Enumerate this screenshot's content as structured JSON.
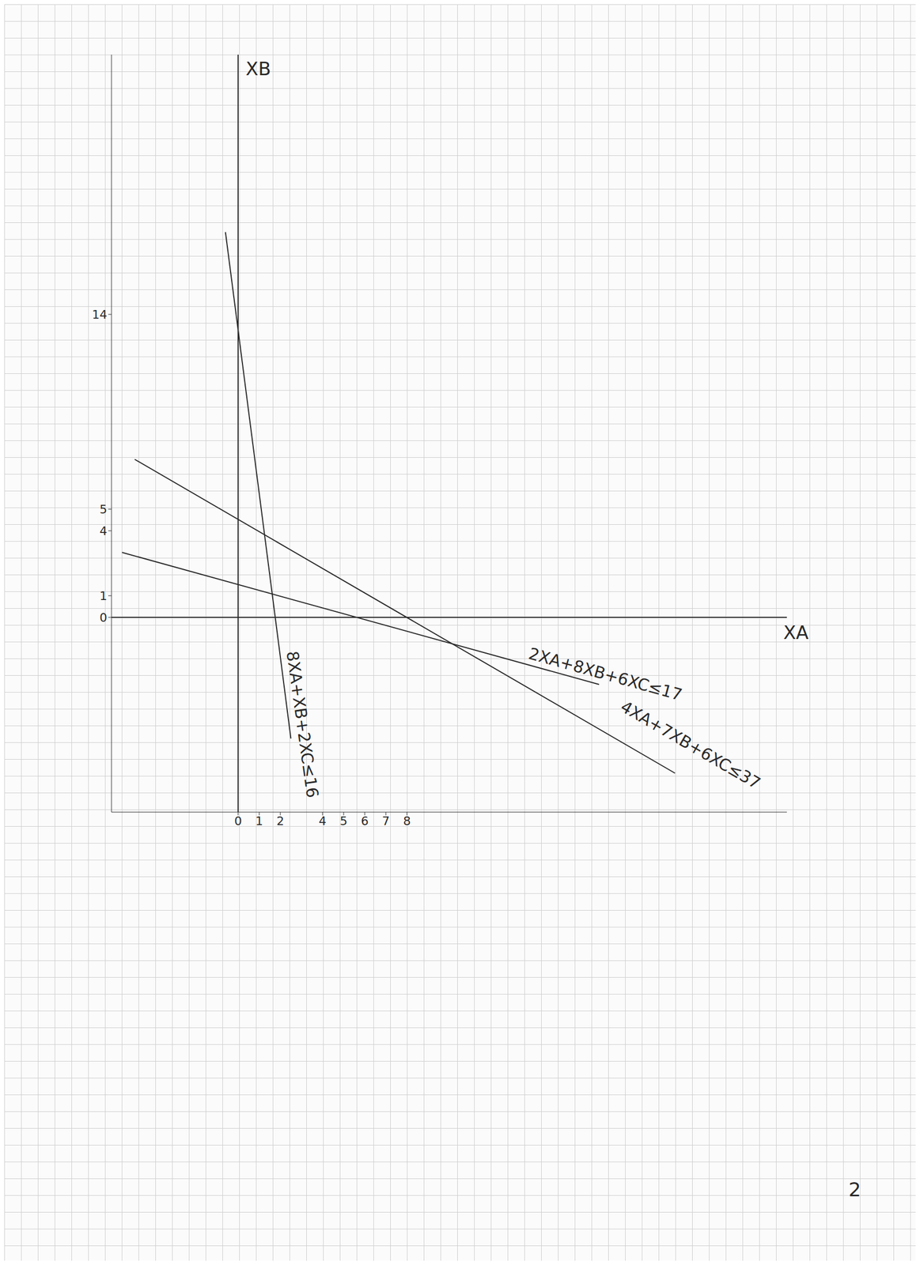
{
  "chart_data": {
    "type": "line",
    "x_label": "XA",
    "y_label": "XB",
    "xlim": [
      -6,
      26
    ],
    "ylim": [
      -9,
      26
    ],
    "xticks": [
      0,
      1,
      2,
      4,
      5,
      6,
      7,
      8
    ],
    "yticks": [
      0,
      1,
      4,
      5,
      14
    ],
    "grid": true,
    "series": [
      {
        "name": "8XA+XB+2XC≤16",
        "color": "#2a2a2a",
        "x": [
          -0.6,
          2.5
        ],
        "values": [
          17.8,
          -5.6
        ]
      },
      {
        "name": "2XA+8XB+6XC≤17",
        "color": "#2a2a2a",
        "x": [
          -5.5,
          17.1
        ],
        "values": [
          3.0,
          -3.1
        ]
      },
      {
        "name": "4XA+7XB+6XC≤37",
        "color": "#2a2a2a",
        "x": [
          -4.9,
          20.7
        ],
        "values": [
          7.3,
          -7.2
        ]
      }
    ]
  },
  "page_number": "2"
}
